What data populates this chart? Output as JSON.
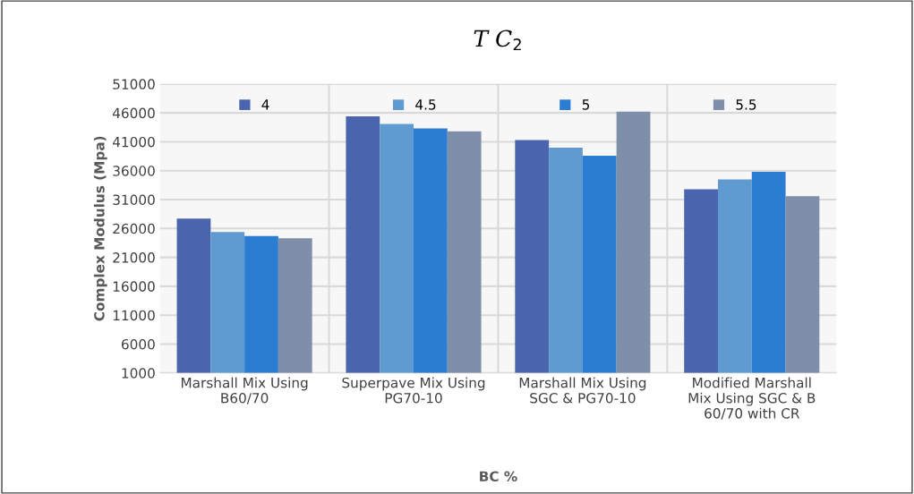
{
  "chart_data": {
    "type": "bar",
    "title": "T C$_{2}$",
    "xlabel": "BC %",
    "ylabel": "Complex Modulus (Mpa)",
    "categories": [
      "Marshall Mix Using B60/70",
      "Superpave Mix Using PG70-10",
      "Marshall Mix Using SGC & PG70-10",
      "Modified Marshall Mix Using SGC & B 60/70 with CR"
    ],
    "series": [
      {
        "name": "4",
        "color": "#4a65ad",
        "values": [
          27700,
          45400,
          41300,
          32800
        ]
      },
      {
        "name": "4.5",
        "color": "#5f9bd0",
        "values": [
          25400,
          44100,
          40000,
          34500
        ]
      },
      {
        "name": "5",
        "color": "#2b7cd3",
        "values": [
          24700,
          43300,
          38600,
          35800
        ]
      },
      {
        "name": "5.5",
        "color": "#7f8ea9",
        "values": [
          24300,
          42800,
          46200,
          31600
        ]
      }
    ],
    "ylim": [
      1000,
      51000
    ],
    "yticks": [
      1000,
      6000,
      11000,
      16000,
      21000,
      26000,
      31000,
      36000,
      41000,
      46000,
      51000
    ],
    "grid": true,
    "legend": "top"
  }
}
